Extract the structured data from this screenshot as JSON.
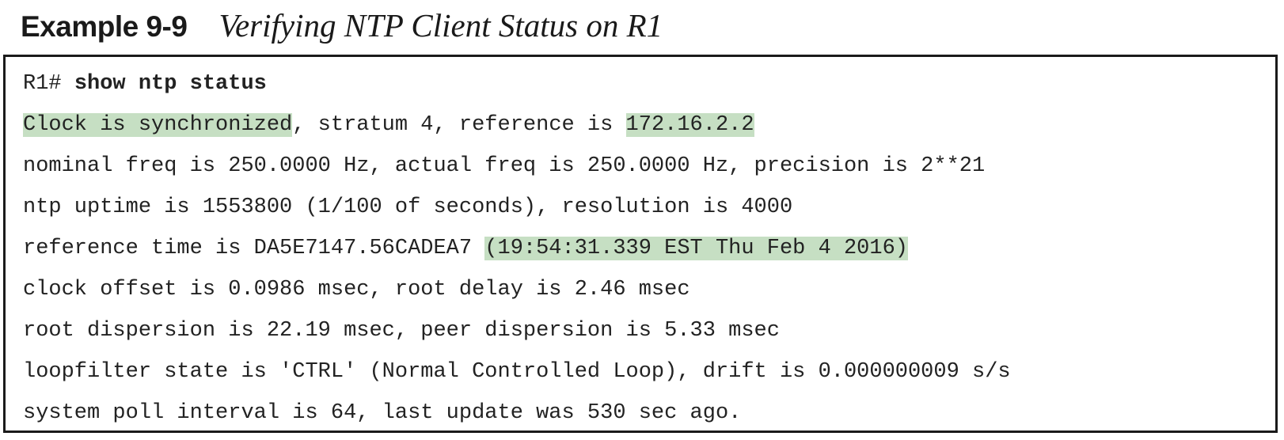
{
  "example": {
    "label": "Example 9-9",
    "title": "Verifying NTP Client Status on R1"
  },
  "colors": {
    "highlight": "#c6dfc3",
    "border": "#1a1a1a",
    "text": "#222222"
  },
  "output": {
    "prompt": "R1# ",
    "command": "show ntp status",
    "line1": {
      "status": "Clock is synchronized",
      "middle": ", stratum 4, reference is ",
      "reference": "172.16.2.2"
    },
    "line2": "nominal freq is 250.0000 Hz, actual freq is 250.0000 Hz, precision is 2**21",
    "line3": "ntp uptime is 1553800 (1/100 of seconds), resolution is 4000",
    "line4": {
      "prefix": "reference time is DA5E7147.56CADEA7 ",
      "time": "(19:54:31.339 EST Thu Feb 4 2016)"
    },
    "line5": "clock offset is 0.0986 msec, root delay is 2.46 msec",
    "line6": "root dispersion is 22.19 msec, peer dispersion is 5.33 msec",
    "line7": "loopfilter state is 'CTRL' (Normal Controlled Loop), drift is 0.000000009 s/s",
    "line8": "system poll interval is 64, last update was 530 sec ago."
  }
}
